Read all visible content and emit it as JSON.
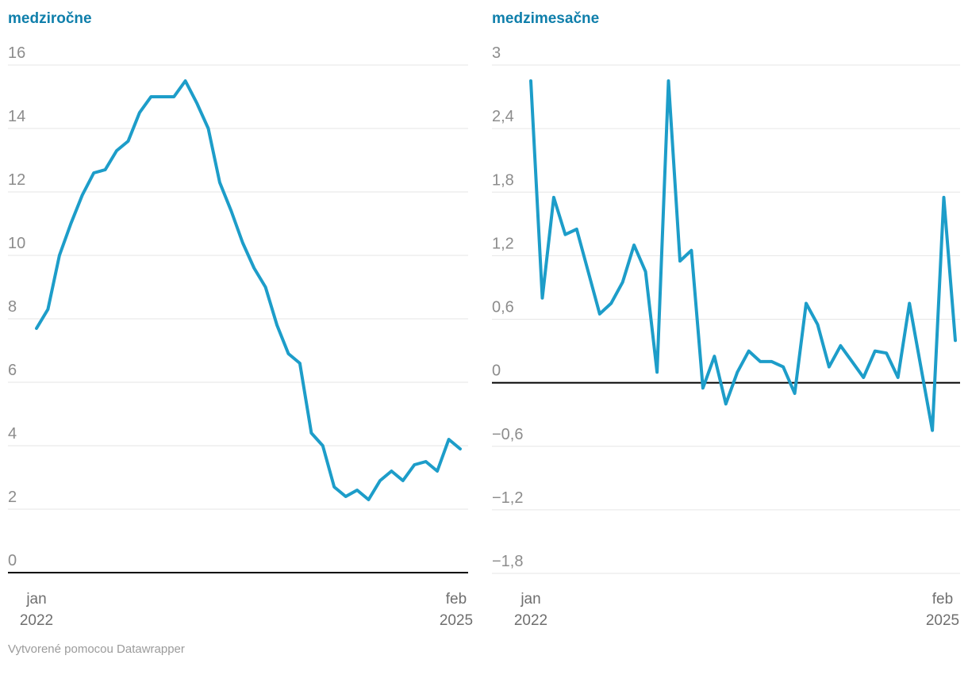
{
  "colors": {
    "line": "#1d9dc9",
    "title": "#0f7fab",
    "grid": "#e6e6e6",
    "zero_line": "#000000",
    "tick_label": "#8c8c8c",
    "x_label": "#6f6f6f",
    "footer": "#9b9b9b"
  },
  "footer": {
    "text": "Vytvorené pomocou Datawrapper"
  },
  "chart_data": [
    {
      "type": "line",
      "title": "medziročne",
      "xlabel": "",
      "ylabel": "",
      "ylim": [
        0,
        16
      ],
      "grid": true,
      "legend": "none",
      "x_axis": {
        "start_line1": "jan",
        "start_line2": "2022",
        "end_line1": "feb",
        "end_line2": "2025"
      },
      "yticks": [
        {
          "v": 16,
          "label": "16"
        },
        {
          "v": 14,
          "label": "14"
        },
        {
          "v": 12,
          "label": "12"
        },
        {
          "v": 10,
          "label": "10"
        },
        {
          "v": 8,
          "label": "8"
        },
        {
          "v": 6,
          "label": "6"
        },
        {
          "v": 4,
          "label": "4"
        },
        {
          "v": 2,
          "label": "2"
        },
        {
          "v": 0,
          "label": "0"
        }
      ],
      "x": [
        "2022-01",
        "2022-02",
        "2022-03",
        "2022-04",
        "2022-05",
        "2022-06",
        "2022-07",
        "2022-08",
        "2022-09",
        "2022-10",
        "2022-11",
        "2022-12",
        "2023-01",
        "2023-02",
        "2023-03",
        "2023-04",
        "2023-05",
        "2023-06",
        "2023-07",
        "2023-08",
        "2023-09",
        "2023-10",
        "2023-11",
        "2023-12",
        "2024-01",
        "2024-02",
        "2024-03",
        "2024-04",
        "2024-05",
        "2024-06",
        "2024-07",
        "2024-08",
        "2024-09",
        "2024-10",
        "2024-11",
        "2024-12",
        "2025-01",
        "2025-02"
      ],
      "values": [
        7.7,
        8.3,
        10.0,
        11.0,
        11.9,
        12.6,
        12.7,
        13.3,
        13.6,
        14.5,
        15.0,
        15.0,
        15.0,
        15.5,
        14.8,
        14.0,
        12.3,
        11.4,
        10.4,
        9.6,
        9.0,
        7.8,
        6.9,
        6.6,
        4.4,
        4.0,
        2.7,
        2.4,
        2.6,
        2.3,
        2.9,
        3.2,
        2.9,
        3.4,
        3.5,
        3.2,
        4.2,
        3.9
      ]
    },
    {
      "type": "line",
      "title": "medzimesačne",
      "xlabel": "",
      "ylabel": "",
      "ylim": [
        -1.8,
        3
      ],
      "grid": true,
      "legend": "none",
      "x_axis": {
        "start_line1": "jan",
        "start_line2": "2022",
        "end_line1": "feb",
        "end_line2": "2025"
      },
      "yticks": [
        {
          "v": 3,
          "label": "3"
        },
        {
          "v": 2.4,
          "label": "2,4"
        },
        {
          "v": 1.8,
          "label": "1,8"
        },
        {
          "v": 1.2,
          "label": "1,2"
        },
        {
          "v": 0.6,
          "label": "0,6"
        },
        {
          "v": 0,
          "label": "0"
        },
        {
          "v": -0.6,
          "label": "−0,6"
        },
        {
          "v": -1.2,
          "label": "−1,2"
        },
        {
          "v": -1.8,
          "label": "−1,8"
        }
      ],
      "x": [
        "2022-01",
        "2022-02",
        "2022-03",
        "2022-04",
        "2022-05",
        "2022-06",
        "2022-07",
        "2022-08",
        "2022-09",
        "2022-10",
        "2022-11",
        "2022-12",
        "2023-01",
        "2023-02",
        "2023-03",
        "2023-04",
        "2023-05",
        "2023-06",
        "2023-07",
        "2023-08",
        "2023-09",
        "2023-10",
        "2023-11",
        "2023-12",
        "2024-01",
        "2024-02",
        "2024-03",
        "2024-04",
        "2024-05",
        "2024-06",
        "2024-07",
        "2024-08",
        "2024-09",
        "2024-10",
        "2024-11",
        "2024-12",
        "2025-01",
        "2025-02"
      ],
      "values": [
        2.85,
        0.8,
        1.75,
        1.4,
        1.45,
        1.05,
        0.65,
        0.75,
        0.95,
        1.3,
        1.05,
        0.1,
        2.85,
        1.15,
        1.25,
        -0.05,
        0.25,
        -0.2,
        0.1,
        0.3,
        0.2,
        0.2,
        0.15,
        -0.1,
        0.75,
        0.55,
        0.15,
        0.35,
        0.2,
        0.05,
        0.3,
        0.28,
        0.05,
        0.75,
        0.15,
        -0.45,
        1.75,
        0.4
      ]
    }
  ]
}
